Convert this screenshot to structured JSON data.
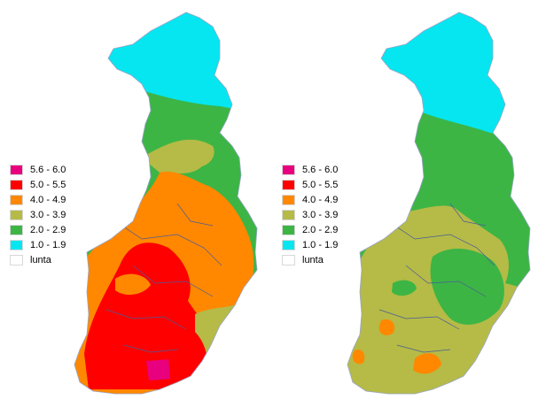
{
  "legend": [
    {
      "label": "5.6 - 6.0",
      "color": "#e8007e"
    },
    {
      "label": "5.0 - 5.5",
      "color": "#ff0000"
    },
    {
      "label": "4.0 - 4.9",
      "color": "#ff8800"
    },
    {
      "label": "3.0 - 3.9",
      "color": "#b5bb46"
    },
    {
      "label": "2.0 - 2.9",
      "color": "#3cb545"
    },
    {
      "label": "1.0 - 1.9",
      "color": "#05e6f0"
    },
    {
      "label": "lunta",
      "color": "#ffffff"
    }
  ],
  "maps": [
    {
      "name": "left-map",
      "class_colors": [
        "#05e6f0",
        "#3cb545",
        "#b5bb46",
        "#ff8800",
        "#ff0000",
        "#e8007e"
      ]
    },
    {
      "name": "right-map",
      "class_colors": [
        "#05e6f0",
        "#3cb545",
        "#b5bb46",
        "#ff8800"
      ]
    }
  ]
}
